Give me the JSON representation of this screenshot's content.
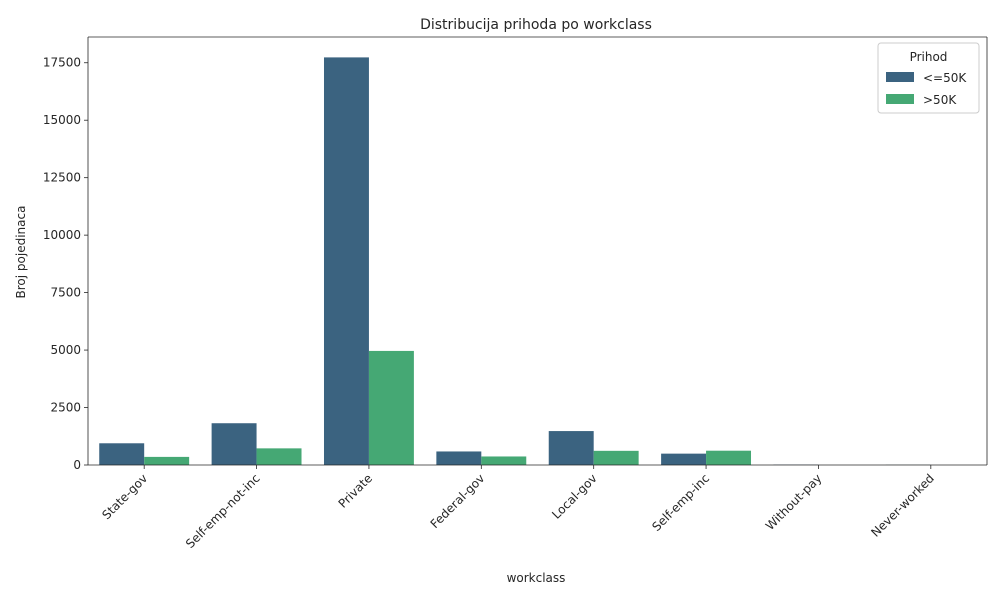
{
  "chart_data": {
    "type": "bar",
    "title": "Distribucija prihoda po workclass",
    "xlabel": "workclass",
    "ylabel": "Broj pojedinaca",
    "categories": [
      "State-gov",
      "Self-emp-not-inc",
      "Private",
      "Federal-gov",
      "Local-gov",
      "Self-emp-inc",
      "Without-pay",
      "Never-worked"
    ],
    "series": [
      {
        "name": "<=50K",
        "color": "#3b6380",
        "values": [
          945,
          1817,
          17733,
          589,
          1476,
          494,
          14,
          7
        ]
      },
      {
        "name": ">50K",
        "color": "#45a874",
        "values": [
          353,
          724,
          4963,
          371,
          617,
          622,
          0,
          0
        ]
      }
    ],
    "ylim": [
      0,
      18620
    ],
    "yticks": [
      0,
      2500,
      5000,
      7500,
      10000,
      12500,
      15000,
      17500
    ],
    "grid": false,
    "legend": {
      "title": "Prihod",
      "placement": "top-right"
    }
  }
}
